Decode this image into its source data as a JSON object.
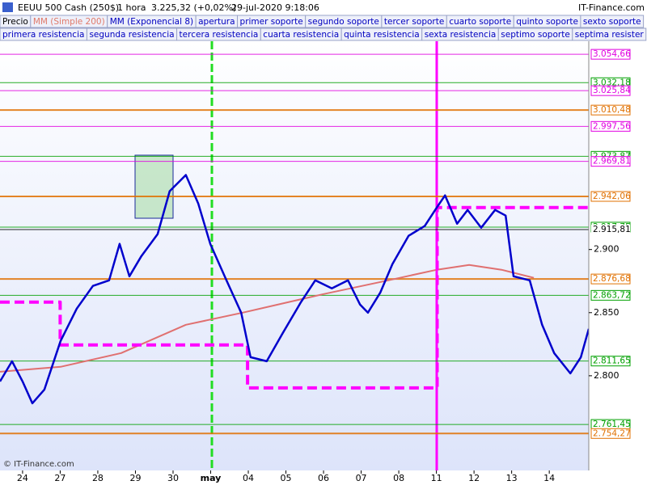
{
  "header": {
    "instrument": "EEUU 500 Cash (250$)",
    "timeframe": "1 hora",
    "quote": "3.225,32 (+0,02%)",
    "datetime": "29-jul-2020 9:18:06",
    "brand": "IT-Finance.com"
  },
  "toolbar": {
    "row1": [
      "Precio",
      "MM (Simple 200)",
      "MM (Exponencial 8)",
      "apertura",
      "primer soporte",
      "segundo soporte",
      "tercer soporte",
      "cuarto soporte",
      "quinto soporte",
      "sexto soporte"
    ],
    "row2": [
      "primera resistencia",
      "segunda resistencia",
      "tercera resistencia",
      "cuarta resistencia",
      "quinta resistencia",
      "sexta resistencia",
      "septimo soporte",
      "septima resister"
    ]
  },
  "watermark": "© IT-Finance.com",
  "chart_data": {
    "type": "line",
    "xlim": [
      -0.6,
      15.05
    ],
    "xticks": [
      {
        "value": 0,
        "label": "24"
      },
      {
        "value": 1,
        "label": "27"
      },
      {
        "value": 2,
        "label": "28"
      },
      {
        "value": 3,
        "label": "29"
      },
      {
        "value": 4,
        "label": "30"
      },
      {
        "value": 5,
        "label": "may"
      },
      {
        "value": 6,
        "label": "04"
      },
      {
        "value": 7,
        "label": "05"
      },
      {
        "value": 8,
        "label": "06"
      },
      {
        "value": 9,
        "label": "07"
      },
      {
        "value": 10,
        "label": "08"
      },
      {
        "value": 11,
        "label": "11"
      },
      {
        "value": 12,
        "label": "12"
      },
      {
        "value": 13,
        "label": "13"
      },
      {
        "value": 14,
        "label": "14"
      }
    ],
    "ylim": [
      2725,
      3065
    ],
    "yticks": [
      {
        "value": 2800,
        "label": "2.800"
      },
      {
        "value": 2850,
        "label": "2.850"
      },
      {
        "value": 2900,
        "label": "2.900"
      }
    ],
    "series": [
      {
        "color": "#e07070",
        "width": 2,
        "x": [
          -0.6,
          1.01,
          2.62,
          4.34,
          5.85,
          8.0,
          9.72,
          11.01,
          11.87,
          12.73,
          13.59
        ],
        "values": [
          2803.2,
          2807.1,
          2818.0,
          2840.4,
          2850.0,
          2864.7,
          2875.6,
          2884.0,
          2887.8,
          2884.0,
          2877.6
        ]
      },
      {
        "color": "#ff00ff",
        "width": 4,
        "dash": true,
        "x": [
          -0.6,
          1.0,
          1.0,
          5.98,
          5.98,
          11.02,
          11.02,
          15.05
        ],
        "values": [
          2858.3,
          2858.3,
          2824.4,
          2824.4,
          2790.4,
          2790.4,
          2933.3,
          2933.3
        ]
      },
      {
        "color": "#0000cc",
        "width": 2.5,
        "x": [
          -0.6,
          -0.28,
          0,
          0.26,
          0.58,
          1.01,
          1.44,
          1.87,
          2.3,
          2.58,
          2.84,
          3.16,
          3.59,
          3.91,
          4.34,
          4.67,
          4.99,
          5.42,
          5.81,
          6.06,
          6.49,
          6.92,
          7.4,
          7.78,
          8.22,
          8.65,
          8.97,
          9.18,
          9.51,
          9.83,
          10.26,
          10.69,
          11.01,
          11.23,
          11.55,
          11.83,
          12.19,
          12.56,
          12.84,
          13.05,
          13.48,
          13.81,
          14.13,
          14.56,
          14.84,
          15.05
        ],
        "values": [
          2795.5,
          2811.5,
          2795.5,
          2778.2,
          2789.1,
          2827.6,
          2853.2,
          2871.2,
          2875.6,
          2904.5,
          2878.8,
          2894.9,
          2912.2,
          2946.2,
          2959.0,
          2936.5,
          2904.5,
          2875.6,
          2850.0,
          2814.7,
          2811.5,
          2834.0,
          2858.3,
          2875.6,
          2869.2,
          2875.6,
          2856.4,
          2850.0,
          2866.0,
          2888.5,
          2910.9,
          2918.6,
          2933.3,
          2942.9,
          2920.5,
          2931.4,
          2917.3,
          2931.4,
          2926.9,
          2878.8,
          2875.6,
          2840.4,
          2818.0,
          2801.9,
          2814.7,
          2837.2
        ]
      }
    ],
    "levels": [
      {
        "value": 3054.66,
        "label": "3.054,66",
        "color": "#e000e0"
      },
      {
        "value": 3032.18,
        "label": "3.032,18",
        "color": "#00a000"
      },
      {
        "value": 3025.84,
        "label": "3.025,84",
        "color": "#e000e0"
      },
      {
        "value": 3010.48,
        "label": "3.010,48",
        "color": "#e07000"
      },
      {
        "value": 2997.56,
        "label": "2.997,56",
        "color": "#e000e0"
      },
      {
        "value": 2973.87,
        "label": "2.973,87",
        "color": "#00a000"
      },
      {
        "value": 2969.81,
        "label": "2.969,81",
        "color": "#e000e0"
      },
      {
        "value": 2942.06,
        "label": "2.942,06",
        "color": "#e07000"
      },
      {
        "value": 2917.75,
        "label": "2.917,75",
        "color": "#00a000"
      },
      {
        "value": 2915.81,
        "label": "2.915,81",
        "color": "#000000"
      },
      {
        "value": 2876.68,
        "label": "2.876,68",
        "color": "#e07000"
      },
      {
        "value": 2863.72,
        "label": "2.863,72",
        "color": "#00a000"
      },
      {
        "value": 2811.65,
        "label": "2.811,65",
        "color": "#00a000"
      },
      {
        "value": 2761.45,
        "label": "2.761,45",
        "color": "#00a000"
      },
      {
        "value": 2754.27,
        "label": "2.754,27",
        "color": "#e07000"
      }
    ]
  }
}
